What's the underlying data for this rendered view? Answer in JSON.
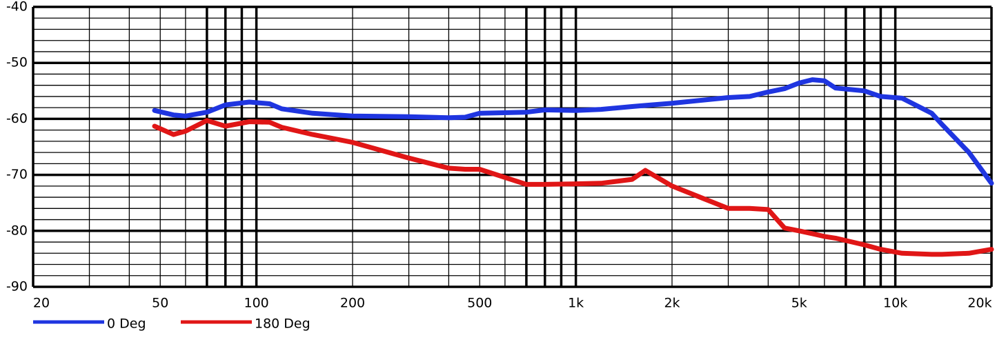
{
  "chart_data": {
    "type": "line",
    "xscale": "log",
    "x": [
      48,
      55,
      60,
      70,
      80,
      95,
      110,
      120,
      150,
      200,
      300,
      400,
      450,
      500,
      700,
      800,
      1000,
      1200,
      1500,
      1650,
      2000,
      3000,
      3500,
      4000,
      4500,
      5000,
      5500,
      6000,
      6500,
      8000,
      9000,
      10500,
      13000,
      14000,
      17000,
      20000
    ],
    "series": [
      {
        "name": "0 Deg",
        "color": "#1f35e0",
        "values": [
          -58.5,
          -59.3,
          -59.5,
          -58.8,
          -57.5,
          -57,
          -57.3,
          -58.2,
          -59,
          -59.5,
          -59.6,
          -59.8,
          -59.7,
          -59,
          -58.8,
          -58.4,
          -58.5,
          -58.3,
          -57.8,
          -57.6,
          -57.2,
          -56.2,
          -56,
          -55.2,
          -54.6,
          -53.6,
          -53,
          -53.2,
          -54.5,
          -55,
          -56,
          -56.3,
          -59,
          -61,
          -66,
          -71.5
        ]
      },
      {
        "name": "180 Deg",
        "color": "#e01616",
        "values": [
          -61.3,
          -62.8,
          -62.2,
          -60.3,
          -61.3,
          -60.5,
          -60.6,
          -61.5,
          -62.8,
          -64.2,
          -67,
          -68.8,
          -69,
          -69,
          -71.7,
          -71.7,
          -71.6,
          -71.5,
          -70.8,
          -69.2,
          -72,
          -76,
          -76,
          -76.2,
          -79.5,
          -80,
          -80.5,
          -81,
          -81.3,
          -82.5,
          -83.3,
          -84,
          -84.2,
          -84.2,
          -84,
          -83.3
        ]
      }
    ],
    "xlim": [
      20,
      20000
    ],
    "ylim": [
      -90,
      -40
    ],
    "xticks": [
      20,
      50,
      100,
      200,
      500,
      {
        "value": 1000,
        "label": "1k"
      },
      {
        "value": 2000,
        "label": "2k"
      },
      {
        "value": 5000,
        "label": "5k"
      },
      {
        "value": 10000,
        "label": "10k"
      },
      {
        "value": 20000,
        "label": "20k"
      }
    ],
    "yticks": [
      -90,
      -80,
      -70,
      -60,
      -50,
      -40
    ],
    "xgrid": [
      30,
      40,
      60,
      70,
      80,
      90,
      300,
      400,
      600,
      700,
      800,
      900,
      3000,
      4000,
      6000,
      7000,
      8000,
      9000
    ],
    "xgrid_thick": [
      70,
      80,
      90,
      100,
      700,
      800,
      900,
      1000,
      7000,
      8000,
      9000,
      10000
    ],
    "ygrid": [
      -88,
      -86,
      -84,
      -82,
      -78,
      -76,
      -74,
      -72,
      -68,
      -66,
      -64,
      -62,
      -58,
      -56,
      -54,
      -52,
      -48,
      -46,
      -44,
      -42
    ],
    "grid": true,
    "legend": "bottom-left"
  }
}
